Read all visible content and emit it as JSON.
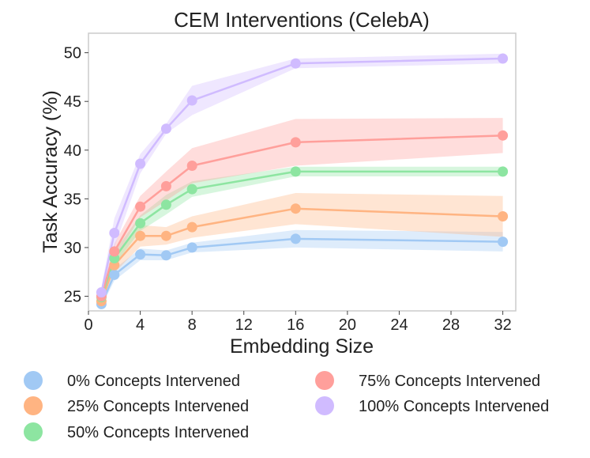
{
  "chart_data": {
    "type": "line",
    "title": "CEM Interventions (CelebA)",
    "xlabel": "Embedding Size",
    "ylabel": "Task Accuracy (%)",
    "xlim": [
      0,
      33
    ],
    "ylim": [
      23.5,
      52
    ],
    "xticks": [
      0,
      4,
      8,
      12,
      16,
      20,
      24,
      28,
      32
    ],
    "yticks": [
      25,
      30,
      35,
      40,
      45,
      50
    ],
    "grid": false,
    "legend_position": "bottom",
    "x": [
      1,
      2,
      4,
      6,
      8,
      16,
      32
    ],
    "series": [
      {
        "name": "0% Concepts Intervened",
        "color": "#a1c9f4",
        "values": [
          24.2,
          27.2,
          29.3,
          29.2,
          30.0,
          30.9,
          30.6
        ],
        "lower": [
          23.9,
          26.6,
          28.7,
          28.7,
          29.5,
          30.0,
          29.6
        ],
        "upper": [
          24.5,
          27.8,
          29.9,
          29.7,
          30.5,
          31.8,
          31.6
        ]
      },
      {
        "name": "25% Concepts Intervened",
        "color": "#ffb482",
        "values": [
          24.5,
          28.2,
          31.2,
          31.2,
          32.1,
          34.0,
          33.2
        ],
        "lower": [
          24.1,
          27.4,
          30.1,
          30.3,
          31.0,
          32.4,
          31.1
        ],
        "upper": [
          24.9,
          29.0,
          32.3,
          32.1,
          33.2,
          35.6,
          35.3
        ]
      },
      {
        "name": "50% Concepts Intervened",
        "color": "#8de5a1",
        "values": [
          24.9,
          28.9,
          32.5,
          34.4,
          36.0,
          37.8,
          37.8
        ],
        "lower": [
          24.5,
          28.2,
          31.7,
          33.4,
          35.2,
          37.3,
          37.3
        ],
        "upper": [
          25.3,
          29.6,
          33.3,
          35.4,
          36.8,
          38.3,
          38.3
        ]
      },
      {
        "name": "75% Concepts Intervened",
        "color": "#ff9f9b",
        "values": [
          25.0,
          29.6,
          34.2,
          36.3,
          38.4,
          40.8,
          41.5
        ],
        "lower": [
          24.5,
          28.8,
          33.1,
          34.8,
          36.6,
          38.4,
          39.7
        ],
        "upper": [
          25.5,
          30.4,
          35.3,
          37.8,
          40.2,
          43.2,
          43.3
        ]
      },
      {
        "name": "100% Concepts Intervened",
        "color": "#d0bbff",
        "values": [
          25.4,
          31.5,
          38.6,
          42.2,
          45.1,
          48.9,
          49.4
        ],
        "lower": [
          24.9,
          30.0,
          37.6,
          41.7,
          43.6,
          48.4,
          48.9
        ],
        "upper": [
          25.9,
          33.0,
          39.6,
          42.7,
          46.6,
          49.4,
          49.9
        ]
      }
    ]
  }
}
